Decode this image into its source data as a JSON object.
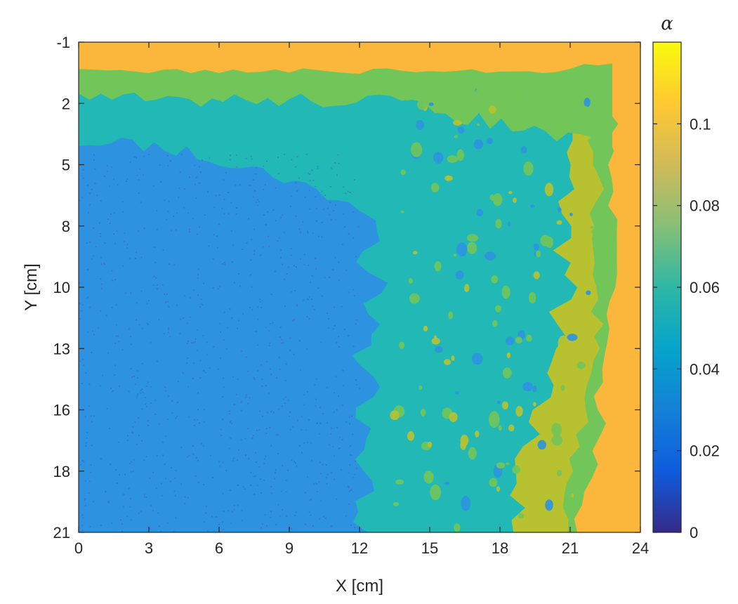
{
  "chart_data": {
    "type": "heatmap",
    "title": "",
    "xlabel": "X [cm]",
    "ylabel": "Y [cm]",
    "xlim": [
      0,
      24
    ],
    "ylim": [
      -1,
      21
    ],
    "y_reversed": true,
    "xticks": [
      0,
      3,
      6,
      9,
      12,
      15,
      18,
      21,
      24
    ],
    "yticks": [
      "-1",
      "2",
      "5",
      "8",
      "10",
      "13",
      "16",
      "18",
      "21"
    ],
    "colorbar": {
      "title": "α",
      "range": [
        0,
        0.12
      ],
      "ticks": [
        0,
        0.02,
        0.04,
        0.06,
        0.08,
        0.1
      ],
      "tick_labels": [
        "0",
        "0.02",
        "0.04",
        "0.06",
        "0.08",
        "0.1"
      ],
      "colormap": "parula"
    },
    "field_summary": {
      "lower_left_region_value": 0.04,
      "middle_band_value": 0.06,
      "upper_edge_value": 0.1,
      "upper_transition_value": 0.075,
      "right_edge_value": 0.1,
      "right_transition_value": 0.085,
      "lower_left_boundary_x": 12.5,
      "upper_top_band_y": 0.3,
      "right_edge_x": 22.8
    }
  },
  "colors": {
    "frame": "#262626",
    "c_0.02": "#3a44c8",
    "c_0.04": "#2d93e0",
    "c_0.06": "#21b8b5",
    "c_0.075": "#72c558",
    "c_0.085": "#b8c230",
    "c_0.1": "#fbb63c"
  }
}
